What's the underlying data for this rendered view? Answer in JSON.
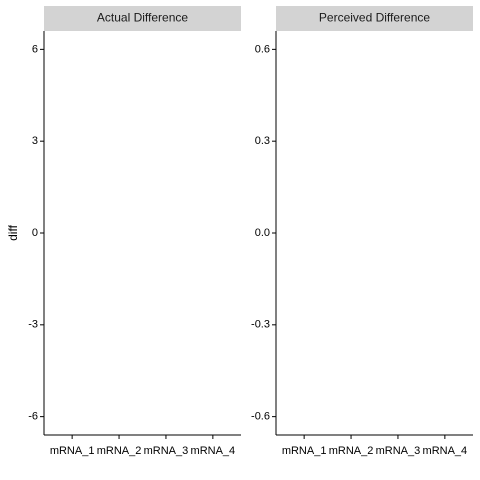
{
  "chart_data": {
    "type": "scatter",
    "ylabel": "diff",
    "categories": [
      "mRNA_1",
      "mRNA_2",
      "mRNA_3",
      "mRNA_4"
    ],
    "panels": [
      {
        "title": "Actual Difference",
        "ylim": [
          -6.6,
          6.6
        ],
        "yticks": [
          -6,
          -3,
          0,
          3,
          6
        ],
        "ytick_labels": [
          "-6",
          "-3",
          "0",
          "3",
          "6"
        ],
        "values": []
      },
      {
        "title": "Perceived Difference",
        "ylim": [
          -0.66,
          0.66
        ],
        "yticks": [
          -0.6,
          -0.3,
          0.0,
          0.3,
          0.6
        ],
        "ytick_labels": [
          "-0.6",
          "-0.3",
          "0.0",
          "0.3",
          "0.6"
        ],
        "values": []
      }
    ],
    "grid": false,
    "legend": "none"
  }
}
